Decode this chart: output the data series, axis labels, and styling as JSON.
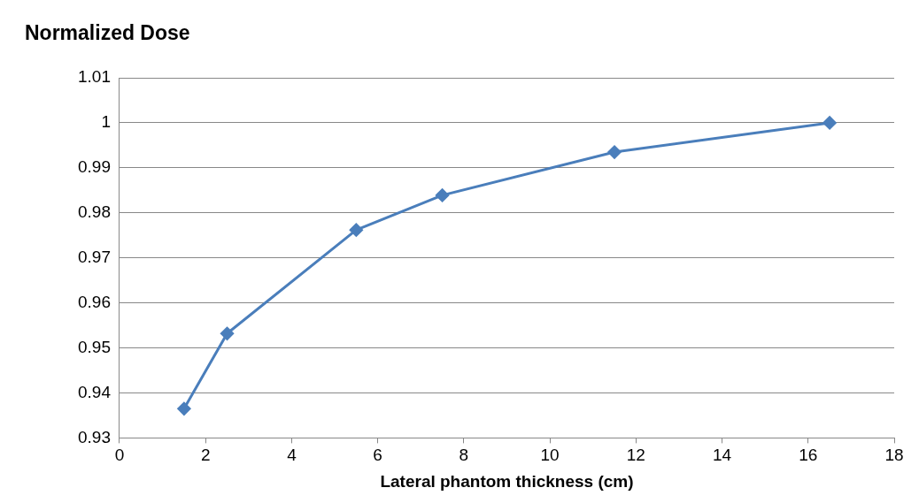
{
  "chart_data": {
    "type": "line",
    "ylabel": "Normalized Dose",
    "xlabel": "Lateral phantom thickness (cm)",
    "x": [
      1.5,
      2.5,
      5.5,
      7.5,
      11.5,
      16.5
    ],
    "series": [
      {
        "color": "#4a7ebb",
        "values": [
          0.9365,
          0.9532,
          0.9762,
          0.9839,
          0.9935,
          1.0
        ]
      }
    ],
    "xlim": [
      0,
      18
    ],
    "xticks": [
      0,
      2,
      4,
      6,
      8,
      10,
      12,
      14,
      16,
      18
    ],
    "ylim": [
      0.93,
      1.01
    ],
    "yticks": [
      0.93,
      0.94,
      0.95,
      0.96,
      0.97,
      0.98,
      0.99,
      1,
      1.01
    ],
    "grid": "y",
    "legend": false,
    "marker": "diamond",
    "line_style": "solid"
  }
}
